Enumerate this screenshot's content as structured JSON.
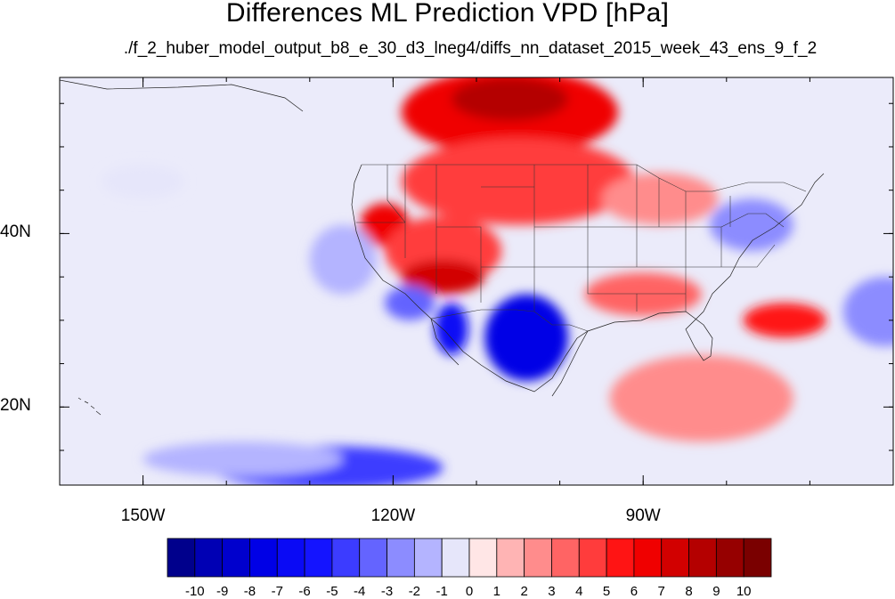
{
  "title": "Differences ML Prediction VPD [hPa]",
  "subtitle": "./f_2_huber_model_output_b8_e_30_d3_lneg4/diffs_nn_dataset_2015_week_43_ens_9_f_2",
  "map": {
    "lon_range": [
      -160,
      -60
    ],
    "lat_range": [
      11,
      58
    ],
    "lon_ticks": [
      {
        "value": -150,
        "label": "150W"
      },
      {
        "value": -120,
        "label": "120W"
      },
      {
        "value": -90,
        "label": "90W"
      }
    ],
    "lat_ticks": [
      {
        "value": 40,
        "label": "40N"
      },
      {
        "value": 20,
        "label": "20N"
      }
    ],
    "minor_lon_step": 10,
    "minor_lat_step": 5
  },
  "colorbar": {
    "labels": [
      "-10",
      "-9",
      "-8",
      "-7",
      "-6",
      "-5",
      "-4",
      "-3",
      "-2",
      "-1",
      "0",
      "1",
      "2",
      "3",
      "4",
      "5",
      "6",
      "7",
      "8",
      "9",
      "10"
    ],
    "colors": [
      "#00008c",
      "#0000b4",
      "#0000cd",
      "#0000e6",
      "#0a0af5",
      "#1414ff",
      "#3c3cff",
      "#6464ff",
      "#8c8cff",
      "#b4b4ff",
      "#e6e6fa",
      "#ffe6e6",
      "#ffb4b4",
      "#ff8c8c",
      "#ff6464",
      "#ff3c3c",
      "#ff1414",
      "#f00000",
      "#d20000",
      "#b40000",
      "#960000",
      "#7a0000"
    ]
  },
  "fields": [
    {
      "name": "canada-north-warm",
      "lon": -106,
      "lat": 54,
      "rx": 13,
      "ry": 5,
      "value": 6
    },
    {
      "name": "canada-north-core",
      "lon": -106,
      "lat": 55.5,
      "rx": 7,
      "ry": 2.5,
      "value": 8
    },
    {
      "name": "northern-plains-warm",
      "lon": -105,
      "lat": 46,
      "rx": 14,
      "ry": 5,
      "value": 4
    },
    {
      "name": "sierra-warm",
      "lon": -121,
      "lat": 41,
      "rx": 3,
      "ry": 2.5,
      "value": 6
    },
    {
      "name": "great-basin-warm",
      "lon": -114,
      "lat": 38,
      "rx": 7,
      "ry": 4,
      "value": 4
    },
    {
      "name": "desert-sw-warm",
      "lon": -114,
      "lat": 35,
      "rx": 5,
      "ry": 2,
      "value": 7
    },
    {
      "name": "great-lakes-warm",
      "lon": -88,
      "lat": 44,
      "rx": 7,
      "ry": 3,
      "value": 2
    },
    {
      "name": "southeast-warm",
      "lon": -90,
      "lat": 33,
      "rx": 7,
      "ry": 2.5,
      "value": 3
    },
    {
      "name": "atlantic-warm",
      "lon": -73,
      "lat": 30,
      "rx": 5,
      "ry": 2,
      "value": 5
    },
    {
      "name": "caribbean-warm",
      "lon": -83,
      "lat": 21,
      "rx": 11,
      "ry": 5,
      "value": 2
    },
    {
      "name": "mexico-cool",
      "lon": -104,
      "lat": 28,
      "rx": 5,
      "ry": 5,
      "value": -8
    },
    {
      "name": "baja-cool",
      "lon": -113,
      "lat": 29,
      "rx": 2,
      "ry": 3,
      "value": -7
    },
    {
      "name": "calif-coast-cool",
      "lon": -118,
      "lat": 32,
      "rx": 3,
      "ry": 2,
      "value": -4
    },
    {
      "name": "east-coast-cool",
      "lon": -77,
      "lat": 41,
      "rx": 5,
      "ry": 3,
      "value": -3
    },
    {
      "name": "atlantic-east-cool",
      "lon": -61,
      "lat": 31,
      "rx": 5,
      "ry": 4,
      "value": -3
    },
    {
      "name": "pacific-south-cool",
      "lon": -128,
      "lat": 13,
      "rx": 14,
      "ry": 2.5,
      "value": -5
    },
    {
      "name": "pacific-band-cool",
      "lon": -138,
      "lat": 14,
      "rx": 12,
      "ry": 2,
      "value": -2
    },
    {
      "name": "pacific-west-cool",
      "lon": -150,
      "lat": 46,
      "rx": 5,
      "ry": 2,
      "value": -1
    },
    {
      "name": "pacific-mid-cool",
      "lon": -126,
      "lat": 37,
      "rx": 4,
      "ry": 4,
      "value": -2
    }
  ]
}
